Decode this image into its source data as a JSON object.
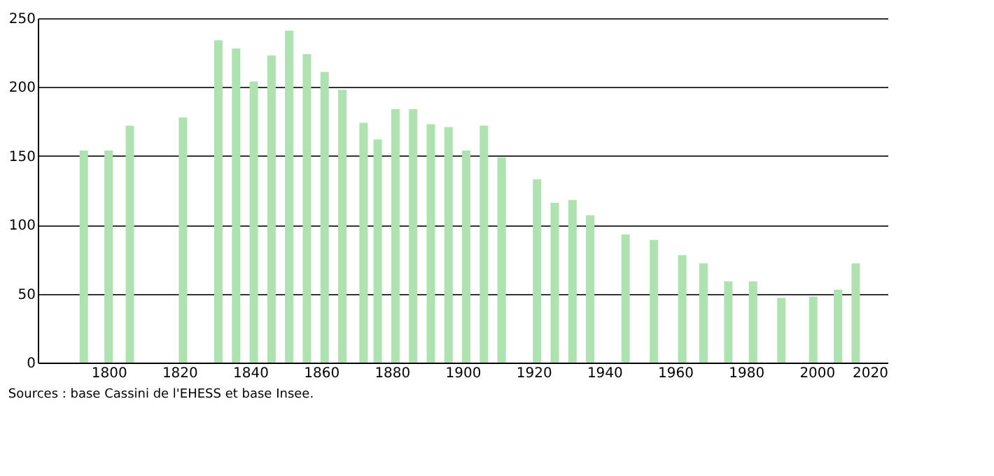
{
  "chart_data": {
    "type": "bar",
    "x": [
      1793,
      1800,
      1806,
      1821,
      1831,
      1836,
      1841,
      1846,
      1851,
      1856,
      1861,
      1866,
      1872,
      1876,
      1881,
      1886,
      1891,
      1896,
      1901,
      1906,
      1911,
      1921,
      1926,
      1931,
      1936,
      1946,
      1954,
      1962,
      1968,
      1975,
      1982,
      1990,
      1999,
      2006,
      2011
    ],
    "values": [
      154,
      154,
      172,
      178,
      234,
      228,
      204,
      223,
      241,
      224,
      211,
      198,
      174,
      162,
      184,
      184,
      173,
      171,
      154,
      172,
      149,
      133,
      116,
      118,
      107,
      93,
      89,
      78,
      72,
      59,
      59,
      47,
      48,
      53,
      72
    ],
    "color": "#aee2b0",
    "xlim": [
      1780,
      2020
    ],
    "xticks": [
      1800,
      1820,
      1840,
      1860,
      1880,
      1900,
      1920,
      1940,
      1960,
      1980,
      2000,
      2020
    ],
    "ylim": [
      0,
      250
    ],
    "yticks": [
      0,
      50,
      100,
      150,
      200,
      250
    ],
    "grid": "y",
    "annotations": [
      "Sources : base Cassini de l'EHESS et base Insee."
    ]
  }
}
